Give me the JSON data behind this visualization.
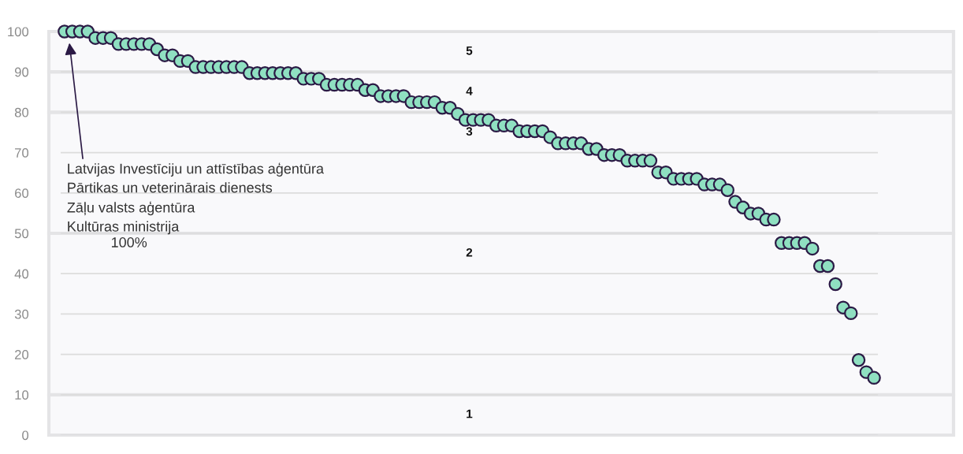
{
  "chart_data": {
    "type": "scatter",
    "categories": [
      null,
      null,
      null,
      null,
      null,
      null,
      null,
      null,
      null,
      null,
      null,
      null,
      null,
      null,
      null,
      null,
      null,
      null,
      null,
      null,
      null,
      null,
      null,
      null,
      null,
      null,
      null,
      null,
      null,
      null,
      null,
      null,
      null,
      null,
      null,
      null,
      null,
      null,
      null,
      null,
      null,
      null,
      null,
      null,
      null,
      null,
      null,
      null,
      null,
      null,
      null,
      null,
      null,
      null,
      null,
      null,
      null,
      null,
      null,
      null,
      null,
      null,
      null,
      null,
      null,
      null,
      null,
      null,
      null,
      null,
      null,
      null,
      null,
      null,
      null,
      null,
      null,
      null,
      null,
      null,
      null,
      null,
      null,
      null,
      null,
      null,
      null,
      null,
      null,
      null,
      null,
      null,
      null,
      null,
      null,
      null,
      null,
      null,
      null,
      null,
      null,
      null,
      null,
      null,
      null,
      null
    ],
    "series": [
      {
        "color": "#8fe0c1",
        "values": [
          100,
          100,
          100,
          100,
          98.4,
          98.4,
          98.4,
          96.9,
          96.9,
          96.9,
          96.9,
          96.9,
          95.6,
          94.1,
          94.1,
          92.7,
          92.7,
          91.2,
          91.2,
          91.2,
          91.2,
          91.2,
          91.2,
          91.2,
          89.7,
          89.7,
          89.7,
          89.7,
          89.7,
          89.7,
          89.7,
          88.3,
          88.3,
          88.3,
          86.8,
          86.8,
          86.8,
          86.8,
          86.8,
          85.5,
          85.5,
          84.0,
          84.0,
          84.0,
          84.0,
          82.5,
          82.5,
          82.5,
          82.5,
          81.1,
          81.1,
          79.6,
          78.1,
          78.1,
          78.1,
          78.1,
          76.7,
          76.7,
          76.7,
          75.3,
          75.3,
          75.3,
          75.3,
          73.8,
          72.3,
          72.3,
          72.3,
          72.3,
          70.9,
          70.9,
          69.4,
          69.4,
          69.4,
          68.0,
          68.0,
          68.0,
          68.0,
          65.1,
          65.1,
          63.5,
          63.5,
          63.5,
          63.5,
          62.1,
          62.1,
          62.1,
          60.7,
          57.8,
          56.4,
          54.9,
          54.9,
          53.4,
          53.4,
          47.6,
          47.6,
          47.6,
          47.6,
          46.2,
          41.9,
          41.9,
          37.4,
          31.6,
          30.2,
          18.6,
          15.6,
          14.2
        ]
      }
    ],
    "marker": "circle",
    "ylim": [
      0,
      100
    ],
    "yticks": [
      0,
      10,
      20,
      30,
      40,
      50,
      60,
      70,
      80,
      90,
      100
    ],
    "grid": "y",
    "bands": [
      {
        "axis": "y",
        "from": 0,
        "to": 10,
        "label": "1",
        "color": "#e4e4e6"
      },
      {
        "axis": "y",
        "from": 10,
        "to": 50,
        "label": "2",
        "color": "#e4e4e6"
      },
      {
        "axis": "y",
        "from": 50,
        "to": 80,
        "label": "3",
        "color": "#e4e4e6"
      },
      {
        "axis": "y",
        "from": 80,
        "to": 90,
        "label": "4",
        "color": "#e4e4e6"
      },
      {
        "axis": "y",
        "from": 90,
        "to": 100,
        "label": "5",
        "color": "#e4e4e6"
      }
    ],
    "annotations": [
      "Latvijas Investīciju un attīstības aģentūra\nPārtikas un veterinārais dienests\nZāļu valsts aģentūra\nKultūras ministrija",
      "100%"
    ]
  }
}
